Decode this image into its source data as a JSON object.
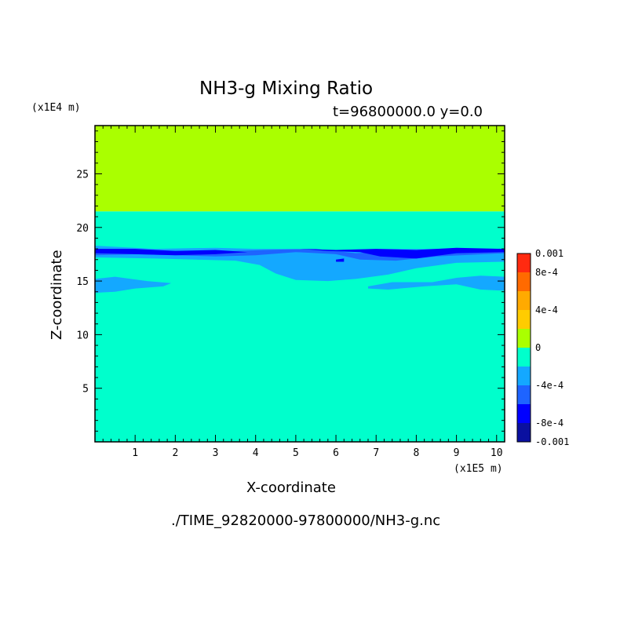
{
  "chart_data": {
    "type": "heatmap",
    "title": "NH3-g Mixing Ratio",
    "subtitle": "t=96800000.0 y=0.0",
    "xlabel": "X-coordinate",
    "ylabel": "Z-coordinate",
    "x_scale_label": "(x1E5 m)",
    "y_scale_label": "(x1E4 m)",
    "xlim": [
      0,
      10.2
    ],
    "ylim": [
      0,
      29.5
    ],
    "x_ticks": [
      "1",
      "2",
      "3",
      "4",
      "5",
      "6",
      "7",
      "8",
      "9",
      "10"
    ],
    "y_ticks": [
      "5",
      "10",
      "15",
      "20",
      "25"
    ],
    "footer": "./TIME_92820000-97800000/NH3-g.nc",
    "colorbar": {
      "min": -0.001,
      "max": 0.001,
      "labels": [
        "0.001",
        "8e-4",
        "4e-4",
        "0",
        "-4e-4",
        "-8e-4",
        "-0.001"
      ],
      "levels": [
        {
          "from": -0.001,
          "to": -0.0008,
          "color": "#0a10a0"
        },
        {
          "from": -0.0008,
          "to": -0.0006,
          "color": "#0000ff"
        },
        {
          "from": -0.0006,
          "to": -0.0004,
          "color": "#1e64ff"
        },
        {
          "from": -0.0004,
          "to": -0.0002,
          "color": "#14a8ff"
        },
        {
          "from": -0.0002,
          "to": 0.0,
          "color": "#00ffcc"
        },
        {
          "from": 0.0,
          "to": 0.0002,
          "color": "#aaff00"
        },
        {
          "from": 0.0002,
          "to": 0.0004,
          "color": "#ffcc00"
        },
        {
          "from": 0.0004,
          "to": 0.0006,
          "color": "#ffaa00"
        },
        {
          "from": 0.0006,
          "to": 0.0008,
          "color": "#ff6a00"
        },
        {
          "from": 0.0008,
          "to": 0.001,
          "color": "#ff2a10"
        },
        {
          "from": 0.0009,
          "to": 0.001,
          "color": "#ff4040"
        }
      ]
    },
    "fields": {
      "upper_layer": {
        "z_from": 21.5,
        "z_to": 29.5,
        "value": 0.0001
      },
      "background": {
        "z_from": 0,
        "z_to": 21.5,
        "value": -0.0001
      },
      "features": [
        {
          "kind": "band",
          "value": -0.0003,
          "points": [
            [
              0,
              18.3
            ],
            [
              1.5,
              18.0
            ],
            [
              3,
              18.1
            ],
            [
              4,
              18.0
            ],
            [
              5,
              18.0
            ],
            [
              6,
              17.9
            ],
            [
              7,
              18.0
            ],
            [
              8,
              18.0
            ],
            [
              9,
              18.0
            ],
            [
              10.2,
              18.0
            ],
            [
              10.2,
              16.8
            ],
            [
              9,
              16.7
            ],
            [
              8,
              16.2
            ],
            [
              7.3,
              15.6
            ],
            [
              6.5,
              15.2
            ],
            [
              5.8,
              15.0
            ],
            [
              5,
              15.1
            ],
            [
              4.5,
              15.7
            ],
            [
              4.1,
              16.5
            ],
            [
              3.5,
              16.9
            ],
            [
              2.5,
              17.0
            ],
            [
              1.5,
              17.1
            ],
            [
              0,
              17.2
            ]
          ]
        },
        {
          "kind": "band",
          "value": -0.0003,
          "points": [
            [
              0,
              15.2
            ],
            [
              0.5,
              15.4
            ],
            [
              1.3,
              15.0
            ],
            [
              1.9,
              14.8
            ],
            [
              1.7,
              14.5
            ],
            [
              1,
              14.3
            ],
            [
              0.5,
              14.0
            ],
            [
              0,
              13.9
            ]
          ]
        },
        {
          "kind": "band",
          "value": -0.0003,
          "points": [
            [
              6.8,
              14.5
            ],
            [
              7.4,
              14.9
            ],
            [
              8.4,
              14.9
            ],
            [
              9,
              15.3
            ],
            [
              9.6,
              15.5
            ],
            [
              10.2,
              15.4
            ],
            [
              10.2,
              14.1
            ],
            [
              9.6,
              14.2
            ],
            [
              9,
              14.7
            ],
            [
              8.2,
              14.5
            ],
            [
              7.3,
              14.2
            ],
            [
              6.8,
              14.3
            ]
          ]
        },
        {
          "kind": "band",
          "value": -0.0005,
          "points": [
            [
              0,
              18.0
            ],
            [
              1.5,
              17.8
            ],
            [
              3.5,
              17.8
            ],
            [
              4.2,
              17.9
            ],
            [
              5.5,
              18.0
            ],
            [
              6.5,
              17.6
            ],
            [
              7.5,
              17.8
            ],
            [
              8.5,
              17.9
            ],
            [
              10.2,
              18.0
            ],
            [
              10.2,
              17.6
            ],
            [
              8.5,
              17.3
            ],
            [
              7.5,
              16.9
            ],
            [
              6.6,
              17.0
            ],
            [
              6,
              17.5
            ],
            [
              5,
              17.7
            ],
            [
              4,
              17.4
            ],
            [
              3,
              17.3
            ],
            [
              2,
              17.4
            ],
            [
              1,
              17.5
            ],
            [
              0,
              17.4
            ]
          ]
        },
        {
          "kind": "band",
          "value": -0.0007,
          "points": [
            [
              0,
              18.0
            ],
            [
              1,
              18.0
            ],
            [
              2,
              17.8
            ],
            [
              3,
              17.9
            ],
            [
              3.8,
              17.7
            ],
            [
              3,
              17.5
            ],
            [
              2,
              17.4
            ],
            [
              1,
              17.5
            ],
            [
              0,
              17.6
            ]
          ]
        },
        {
          "kind": "band",
          "value": -0.0007,
          "points": [
            [
              5.1,
              18.0
            ],
            [
              6,
              17.9
            ],
            [
              7,
              18.0
            ],
            [
              8,
              17.9
            ],
            [
              9,
              18.1
            ],
            [
              10.2,
              18.0
            ],
            [
              10.2,
              17.7
            ],
            [
              9,
              17.6
            ],
            [
              8,
              17.1
            ],
            [
              7.1,
              17.3
            ],
            [
              6.6,
              17.7
            ],
            [
              5.8,
              17.8
            ]
          ]
        },
        {
          "kind": "band",
          "value": -0.0007,
          "points": [
            [
              6.0,
              17.0
            ],
            [
              6.2,
              17.1
            ],
            [
              6.2,
              16.8
            ],
            [
              6.0,
              16.8
            ]
          ]
        }
      ]
    }
  }
}
